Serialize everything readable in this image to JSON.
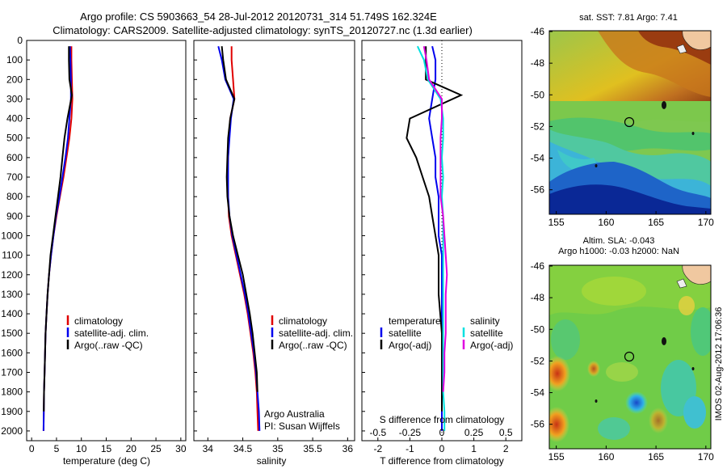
{
  "title": {
    "line1": "Argo profile: CS 5903663_54 28-Jul-2012 20120731_314 51.749S 162.324E",
    "line2": "Climatology: CARS2009. Satellite-adjusted climatology: synTS_20120727.nc (1.3d earlier)"
  },
  "colors": {
    "climatology": "#e00000",
    "satellite": "#0000ee",
    "argo": "#000000",
    "sal_sat": "#00e0e0",
    "sal_argo": "#e000e0"
  },
  "depth_ticks": [
    "0",
    "100",
    "200",
    "300",
    "400",
    "500",
    "600",
    "700",
    "800",
    "900",
    "1000",
    "1100",
    "1200",
    "1300",
    "1400",
    "1500",
    "1600",
    "1700",
    "1800",
    "1900",
    "2000"
  ],
  "panels": {
    "temperature": {
      "xlabel": "temperature (deg C)",
      "ticks": [
        "0",
        "5",
        "10",
        "15",
        "20",
        "25",
        "30"
      ],
      "legend": [
        "climatology",
        "satellite-adj. clim.",
        "Argo(..raw -QC)"
      ]
    },
    "salinity": {
      "xlabel": "salinity",
      "ticks": [
        "34",
        "34.5",
        "35",
        "35.5",
        "36"
      ],
      "legend": [
        "climatology",
        "satellite-adj. clim.",
        "Argo(..raw -QC)"
      ],
      "note1": "Argo Australia",
      "note2": "PI: Susan Wijffels"
    },
    "difference": {
      "xlabel": "T difference from climatology",
      "top_label": "S difference from climatology",
      "t_ticks": [
        "-2",
        "-1",
        "0",
        "1",
        "2"
      ],
      "s_ticks": [
        "-0.5",
        "-0.25",
        "0",
        "0.25",
        "0.5"
      ],
      "legend_head_t": "temperature",
      "legend_head_s": "salinity",
      "legend_t": [
        "satellite",
        "Argo(-adj)"
      ],
      "legend_s": [
        "satellite",
        "Argo(-adj)"
      ]
    }
  },
  "maps": {
    "sst_title": "sat. SST: 7.81 Argo: 7.41",
    "sla_title1": "Altim. SLA: -0.043",
    "sla_title2": "Argo h1000: -0.03 h2000: NaN",
    "lat_ticks": [
      "-46",
      "-48",
      "-50",
      "-52",
      "-54",
      "-56"
    ],
    "lon_ticks": [
      "155",
      "160",
      "165",
      "170"
    ],
    "stamp": "IMOS 02-Aug-2012 17:06:36"
  },
  "chart_data": [
    {
      "type": "line",
      "title": "",
      "xlabel": "temperature (deg C)",
      "ylabel": "",
      "xlim": [
        -1,
        31
      ],
      "ylim": [
        2050,
        0
      ],
      "series": [
        {
          "name": "climatology",
          "x": [
            8.0,
            8.0,
            8.1,
            8.2,
            8.0,
            7.6,
            7.0,
            6.4,
            5.7,
            5.0,
            4.4,
            3.9,
            3.5,
            3.2,
            3.0,
            2.8,
            2.7,
            2.6,
            2.5,
            2.45,
            2.4
          ],
          "y": [
            30,
            100,
            200,
            300,
            400,
            500,
            600,
            700,
            800,
            900,
            1000,
            1100,
            1200,
            1300,
            1400,
            1500,
            1600,
            1700,
            1800,
            1900,
            2000
          ]
        },
        {
          "name": "satellite-adj. clim.",
          "x": [
            7.7,
            7.8,
            7.9,
            7.9,
            7.6,
            7.3,
            6.8,
            6.2,
            5.6,
            4.9,
            4.4,
            3.9,
            3.5,
            3.2,
            3.0,
            2.8,
            2.7,
            2.6,
            2.5,
            2.45,
            2.4
          ],
          "y": [
            30,
            100,
            200,
            300,
            400,
            500,
            600,
            700,
            800,
            900,
            1000,
            1100,
            1200,
            1300,
            1400,
            1500,
            1600,
            1700,
            1800,
            1900,
            2000
          ]
        },
        {
          "name": "Argo(..raw -QC)",
          "x": [
            7.5,
            7.5,
            7.6,
            8.1,
            7.2,
            6.6,
            6.2,
            5.8,
            5.3,
            4.8,
            4.3,
            3.8,
            3.5,
            3.2,
            3.0,
            2.8,
            2.7,
            2.6,
            2.5,
            2.45
          ],
          "y": [
            30,
            100,
            200,
            280,
            400,
            500,
            600,
            700,
            800,
            900,
            1000,
            1100,
            1200,
            1300,
            1400,
            1500,
            1600,
            1700,
            1800,
            1900
          ]
        }
      ]
    },
    {
      "type": "line",
      "title": "",
      "xlabel": "salinity",
      "ylabel": "",
      "xlim": [
        33.8,
        36.1
      ],
      "ylim": [
        2050,
        0
      ],
      "series": [
        {
          "name": "climatology",
          "x": [
            34.34,
            34.34,
            34.36,
            34.38,
            34.32,
            34.3,
            34.29,
            34.28,
            34.29,
            34.3,
            34.34,
            34.4,
            34.46,
            34.52,
            34.57,
            34.61,
            34.65,
            34.68,
            34.7,
            34.71,
            34.72
          ],
          "y": [
            30,
            100,
            200,
            300,
            400,
            500,
            600,
            700,
            800,
            900,
            1000,
            1100,
            1200,
            1300,
            1400,
            1500,
            1600,
            1700,
            1800,
            1900,
            2000
          ]
        },
        {
          "name": "satellite-adj. clim.",
          "x": [
            34.15,
            34.2,
            34.25,
            34.37,
            34.33,
            34.31,
            34.29,
            34.29,
            34.29,
            34.31,
            34.35,
            34.41,
            34.47,
            34.53,
            34.58,
            34.62,
            34.66,
            34.69,
            34.71,
            34.73,
            34.74
          ],
          "y": [
            30,
            100,
            200,
            300,
            400,
            500,
            600,
            700,
            800,
            900,
            1000,
            1100,
            1200,
            1300,
            1400,
            1500,
            1600,
            1700,
            1800,
            1900,
            2000
          ]
        },
        {
          "name": "Argo(..raw -QC)",
          "x": [
            34.2,
            34.22,
            34.26,
            34.38,
            34.32,
            34.29,
            34.28,
            34.27,
            34.28,
            34.31,
            34.36,
            34.43,
            34.5,
            34.55,
            34.6,
            34.64,
            34.67,
            34.7,
            34.71
          ],
          "y": [
            30,
            100,
            200,
            300,
            400,
            500,
            600,
            700,
            800,
            900,
            1000,
            1100,
            1200,
            1300,
            1400,
            1500,
            1600,
            1700,
            1800
          ]
        }
      ]
    },
    {
      "type": "line",
      "title": "",
      "xlabel": "T difference from climatology",
      "ylabel": "",
      "xlim": [
        -2.5,
        2.5
      ],
      "ylim": [
        2050,
        0
      ],
      "series": [
        {
          "name": "temperature satellite",
          "x": [
            -0.3,
            -0.2,
            -0.2,
            -0.3,
            -0.4,
            -0.3,
            -0.2,
            -0.2,
            -0.1,
            -0.1,
            -0.1,
            0,
            0,
            0,
            0,
            0,
            0,
            0,
            0,
            0,
            0
          ],
          "y": [
            30,
            100,
            200,
            300,
            400,
            500,
            600,
            700,
            800,
            900,
            1000,
            1100,
            1200,
            1300,
            1400,
            1500,
            1600,
            1700,
            1800,
            1900,
            2000
          ]
        },
        {
          "name": "temperature Argo(-adj)",
          "x": [
            -0.5,
            -0.5,
            -0.5,
            0.6,
            -1.0,
            -1.1,
            -0.8,
            -0.6,
            -0.4,
            -0.3,
            -0.2,
            -0.1,
            -0.1,
            -0.1,
            -0.05,
            0,
            0,
            0,
            0,
            0
          ],
          "y": [
            30,
            100,
            200,
            280,
            400,
            500,
            600,
            700,
            800,
            900,
            1000,
            1100,
            1200,
            1300,
            1400,
            1500,
            1600,
            1700,
            1800,
            1900
          ]
        },
        {
          "name": "salinity satellite",
          "x": [
            -0.19,
            -0.14,
            -0.11,
            -0.01,
            0.01,
            0.01,
            0.0,
            0.01,
            0.0,
            0.01,
            0.01,
            0.01,
            0.01,
            0.01,
            0.01,
            0.01,
            0.01,
            0.01,
            0.01,
            0.02,
            0.02
          ],
          "y": [
            30,
            100,
            200,
            300,
            400,
            500,
            600,
            700,
            800,
            900,
            1000,
            1100,
            1200,
            1300,
            1400,
            1500,
            1600,
            1700,
            1800,
            1900,
            2000
          ]
        },
        {
          "name": "salinity Argo(-adj)",
          "x": [
            -0.14,
            -0.12,
            -0.1,
            0.0,
            0.0,
            -0.01,
            -0.01,
            -0.01,
            -0.01,
            0.01,
            0.02,
            0.03,
            0.04,
            0.03,
            0.03,
            0.03,
            0.02,
            0.02,
            0.01
          ],
          "y": [
            30,
            100,
            200,
            300,
            400,
            500,
            600,
            700,
            800,
            900,
            1000,
            1100,
            1200,
            1300,
            1400,
            1500,
            1600,
            1700,
            1800
          ]
        }
      ]
    }
  ]
}
